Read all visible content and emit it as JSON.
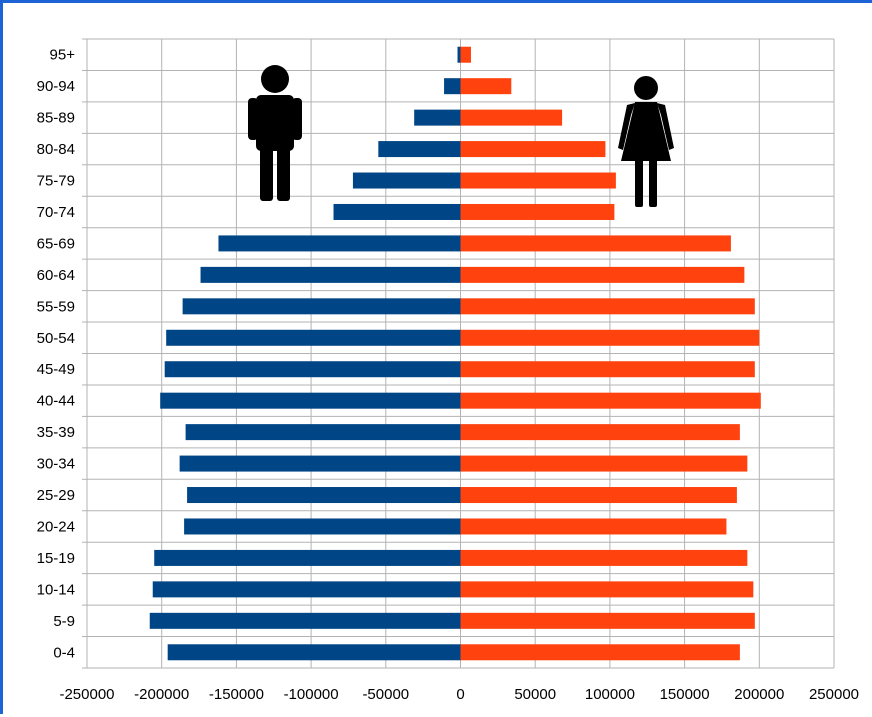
{
  "chart_data": {
    "type": "bar",
    "orientation": "horizontal",
    "title": "",
    "xlabel": "",
    "ylabel": "",
    "categories": [
      "95+",
      "90-94",
      "85-89",
      "80-84",
      "75-79",
      "70-74",
      "65-69",
      "60-64",
      "55-59",
      "50-54",
      "45-49",
      "40-44",
      "35-39",
      "30-34",
      "25-29",
      "20-24",
      "15-19",
      "10-14",
      "5-9",
      "0-4"
    ],
    "series": [
      {
        "color": "#004586",
        "icon": "male-figure-icon",
        "values": [
          -2000,
          -11000,
          -31000,
          -55000,
          -72000,
          -85000,
          -162000,
          -174000,
          -186000,
          -197000,
          -198000,
          -201000,
          -184000,
          -188000,
          -183000,
          -185000,
          -205000,
          -206000,
          -208000,
          -196000
        ]
      },
      {
        "color": "#ff420e",
        "icon": "female-figure-icon",
        "values": [
          7000,
          34000,
          68000,
          97000,
          104000,
          103000,
          181000,
          190000,
          197000,
          200000,
          197000,
          201000,
          187000,
          192000,
          185000,
          178000,
          192000,
          196000,
          197000,
          187000
        ]
      }
    ],
    "xlim": [
      -250000,
      250000
    ],
    "xticks": [
      -250000,
      -200000,
      -150000,
      -100000,
      -50000,
      0,
      50000,
      100000,
      150000,
      200000,
      250000
    ],
    "xtick_labels": [
      "-250000",
      "-200000",
      "-150000",
      "-100000",
      "-50000",
      "0",
      "50000",
      "100000",
      "150000",
      "200000",
      "250000"
    ],
    "grid": true,
    "legend": "none"
  }
}
